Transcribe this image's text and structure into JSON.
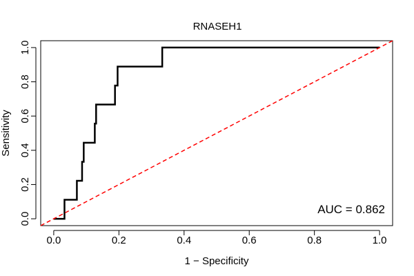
{
  "chart_data": {
    "type": "line",
    "title": "RNASEH1",
    "xlabel": "1 − Specificity",
    "ylabel": "Sensitivity",
    "xlim": [
      -0.04,
      1.04
    ],
    "ylim": [
      -0.04,
      1.04
    ],
    "xticks": [
      0.0,
      0.2,
      0.4,
      0.6,
      0.8,
      1.0
    ],
    "xtick_labels": [
      "0.0",
      "0.2",
      "0.4",
      "0.6",
      "0.8",
      "1.0"
    ],
    "yticks": [
      0.0,
      0.2,
      0.4,
      0.6,
      0.8,
      1.0
    ],
    "ytick_labels": [
      "0.0",
      "0.2",
      "0.4",
      "0.6",
      "0.8",
      "1.0"
    ],
    "grid": false,
    "annotation": "AUC = 0.862",
    "annotation_position": "bottom-right",
    "series": [
      {
        "name": "ROC curve",
        "color": "#000000",
        "style": "solid",
        "x": [
          0.0,
          0.033,
          0.033,
          0.071,
          0.071,
          0.087,
          0.087,
          0.092,
          0.092,
          0.126,
          0.126,
          0.13,
          0.13,
          0.188,
          0.188,
          0.196,
          0.196,
          0.333,
          0.333,
          1.0
        ],
        "y": [
          0.0,
          0.0,
          0.111,
          0.111,
          0.222,
          0.222,
          0.333,
          0.333,
          0.444,
          0.444,
          0.556,
          0.556,
          0.667,
          0.667,
          0.778,
          0.778,
          0.889,
          0.889,
          1.0,
          1.0
        ]
      },
      {
        "name": "Reference line",
        "color": "#ff0000",
        "style": "dashed",
        "x": [
          -0.04,
          1.04
        ],
        "y": [
          -0.04,
          1.04
        ]
      }
    ]
  }
}
